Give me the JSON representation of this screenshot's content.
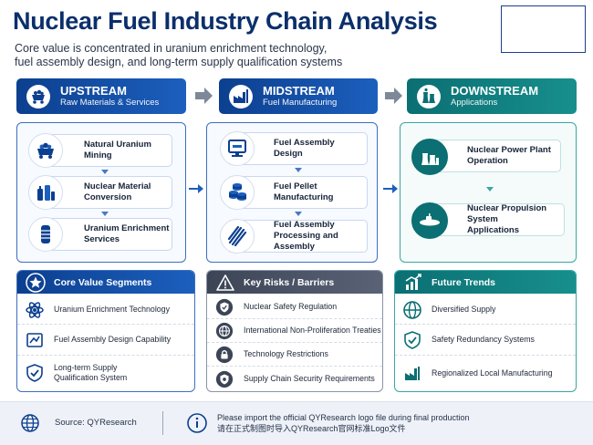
{
  "header": {
    "title": "Nuclear Fuel Industry Chain Analysis",
    "subtitle_line1": "Core value is concentrated in uranium enrichment technology,",
    "subtitle_line2": "fuel assembly design, and long-term supply qualification systems"
  },
  "stages": {
    "upstream": {
      "title": "UPSTREAM",
      "subtitle": "Raw Materials & Services",
      "icon": "mine-cart-icon",
      "items": [
        {
          "line1": "Natural Uranium",
          "line2": "Mining",
          "icon": "ore-cart-icon"
        },
        {
          "line1": "Nuclear Material",
          "line2": "Conversion",
          "icon": "chemical-tanks-icon"
        },
        {
          "line1": "Uranium Enrichment",
          "line2": "Services",
          "icon": "centrifuge-icon"
        }
      ]
    },
    "midstream": {
      "title": "MIDSTREAM",
      "subtitle": "Fuel Manufacturing",
      "icon": "factory-icon",
      "items": [
        {
          "line1": "Fuel Assembly",
          "line2": "Design",
          "icon": "computer-design-icon"
        },
        {
          "line1": "Fuel Pellet",
          "line2": "Manufacturing",
          "icon": "pellet-stack-icon"
        },
        {
          "line1": "Fuel Assembly",
          "line2": "Processing and Assembly",
          "icon": "fuel-rods-icon"
        }
      ]
    },
    "downstream": {
      "title": "DOWNSTREAM",
      "subtitle": "Applications",
      "icon": "cooling-tower-icon",
      "items": [
        {
          "line1": "Nuclear Power Plant",
          "line2": "Operation",
          "icon": "power-plant-icon"
        },
        {
          "line1": "Nuclear Propulsion System",
          "line2": "Applications",
          "icon": "submarine-icon"
        }
      ]
    }
  },
  "bottom": {
    "core_value": {
      "title": "Core Value Segments",
      "icon": "star-icon",
      "rows": [
        {
          "line1": "Uranium Enrichment Technology",
          "line2": "",
          "icon": "atom-icon"
        },
        {
          "line1": "Fuel Assembly Design Capability",
          "line2": "",
          "icon": "blueprint-icon"
        },
        {
          "line1": "Long-term Supply",
          "line2": "Qualification System",
          "icon": "shield-check-icon"
        }
      ]
    },
    "risks": {
      "title": "Key Risks / Barriers",
      "icon": "warning-icon",
      "rows": [
        {
          "line1": "Nuclear Safety Regulation",
          "icon": "shield-check-icon"
        },
        {
          "line1": "International Non-Proliferation Treaties",
          "icon": "globe-icon"
        },
        {
          "line1": "Technology Restrictions",
          "icon": "lock-icon"
        },
        {
          "line1": "Supply Chain Security Requirements",
          "icon": "shield-gear-icon"
        }
      ]
    },
    "trends": {
      "title": "Future Trends",
      "icon": "growth-chart-icon",
      "rows": [
        {
          "line1": "Diversified Supply",
          "icon": "globe-icon"
        },
        {
          "line1": "Safety Redundancy Systems",
          "icon": "shield-check-icon"
        },
        {
          "line1": "Regionalized Local Manufacturing",
          "icon": "factory-icon"
        }
      ]
    }
  },
  "footer": {
    "source": "Source: QYResearch",
    "note_en": "Please import the official QYResearch logo file during final production",
    "note_cn": "请在正式制图时导入QYResearch官网标准Logo文件"
  },
  "colors": {
    "primary_blue": "#0c3f8f",
    "accent_blue": "#1c5fbd",
    "teal": "#0b6f73",
    "grey": "#3c4556"
  }
}
